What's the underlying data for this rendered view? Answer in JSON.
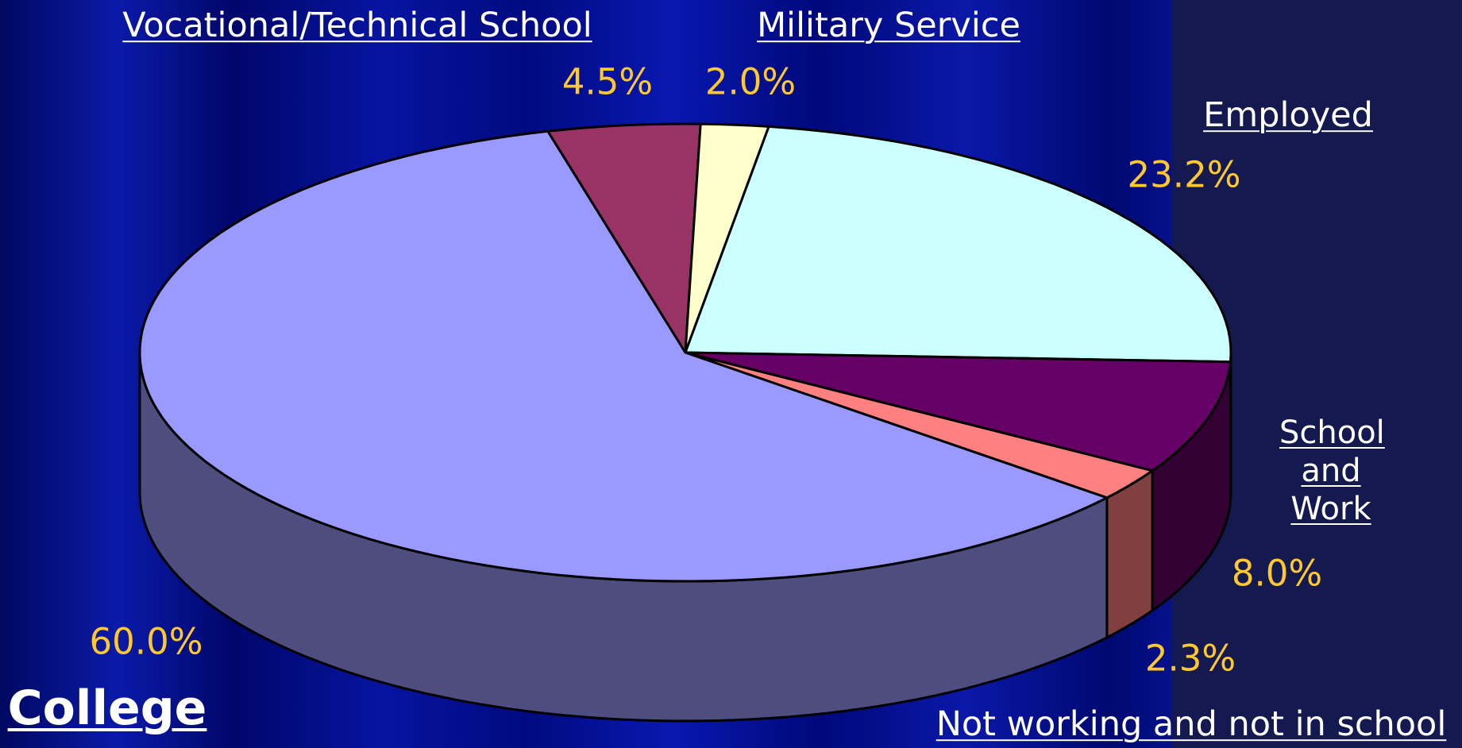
{
  "chart_data": {
    "type": "pie3d",
    "categories": [
      "Vocational/Technical School",
      "Military Service",
      "Employed",
      "School and Work",
      "Not working and not in school",
      "College"
    ],
    "values": [
      4.5,
      2.0,
      23.2,
      8.0,
      2.3,
      60.0
    ],
    "value_labels": [
      "4.5%",
      "2.0%",
      "23.2%",
      "8.0%",
      "2.3%",
      "60.0%"
    ],
    "colors": [
      "#993366",
      "#ffffcc",
      "#ccffff",
      "#660066",
      "#ff8080",
      "#9999ff"
    ]
  }
}
